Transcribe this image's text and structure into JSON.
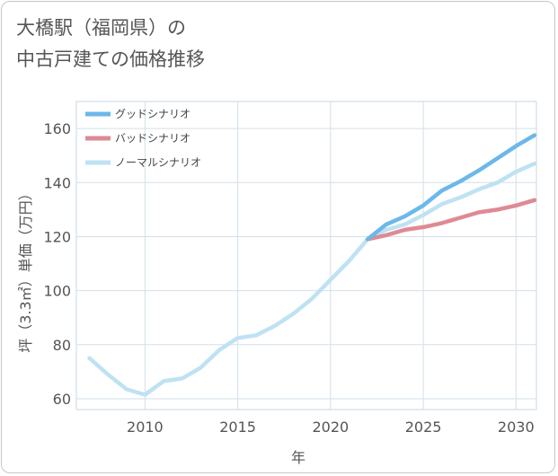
{
  "title": {
    "line1": "大橋駅（福岡県）の",
    "line2": "中古戸建ての価格推移"
  },
  "chart_data": {
    "type": "line",
    "title": "大橋駅（福岡県）の中古戸建ての価格推移",
    "xlabel": "年",
    "ylabel": "坪（3.3㎡）単価（万円）",
    "xlim": [
      2006.3,
      2031.1
    ],
    "ylim": [
      56,
      170
    ],
    "xticks": [
      2010,
      2015,
      2020,
      2025,
      2030
    ],
    "yticks": [
      60,
      80,
      100,
      120,
      140,
      160
    ],
    "grid": true,
    "legend_position": "top-left",
    "series": [
      {
        "name": "グッドシナリオ",
        "color": "#6bb8ea",
        "x": [
          2022,
          2023,
          2024,
          2025,
          2026,
          2027,
          2028,
          2029,
          2030,
          2031
        ],
        "values": [
          119,
          124.5,
          127.5,
          131.5,
          137,
          140.5,
          144.5,
          149,
          153.5,
          157.5
        ]
      },
      {
        "name": "バッドシナリオ",
        "color": "#de8a94",
        "x": [
          2022,
          2023,
          2024,
          2025,
          2026,
          2027,
          2028,
          2029,
          2030,
          2031
        ],
        "values": [
          119,
          120.5,
          122.5,
          123.5,
          125,
          127,
          129,
          130,
          131.5,
          133.5
        ]
      },
      {
        "name": "ノーマルシナリオ",
        "color": "#bfe2f3",
        "x": [
          2007,
          2008,
          2009,
          2010,
          2011,
          2012,
          2013,
          2014,
          2015,
          2016,
          2017,
          2018,
          2019,
          2020,
          2021,
          2022,
          2023,
          2024,
          2025,
          2026,
          2027,
          2028,
          2029,
          2030,
          2031
        ],
        "values": [
          75,
          69,
          63.5,
          61.5,
          66.5,
          67.5,
          71.5,
          78,
          82.5,
          83.5,
          87,
          91.5,
          97,
          104,
          111,
          119,
          122.5,
          124.5,
          128,
          132,
          134.5,
          137.5,
          140,
          144,
          147
        ]
      }
    ]
  }
}
